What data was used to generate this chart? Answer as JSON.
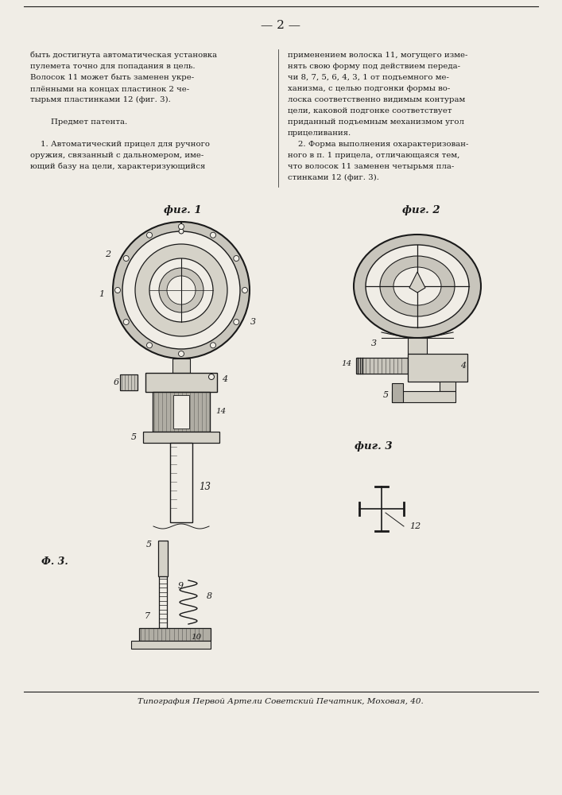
{
  "page_number": "— 2 —",
  "background_color": "#f0ede6",
  "text_color": "#1a1a1a",
  "col1_text_lines": [
    "быть достигнута автоматическая установка",
    "пулемета точно для попадания в цель.",
    "Волосок 11 может быть заменен укре-",
    "плёнными на концах пластинок 2 че-",
    "тырьмя пластинками 12 (фиг. 3).",
    "",
    "        Предмет патента.",
    "",
    "    1. Автоматический прицел для ручного",
    "оружия, связанный с дальномером, име-",
    "ющий базу на цели, характеризующийся"
  ],
  "col2_text_lines": [
    "применением волоска 11, могущего изме-",
    "нять свою форму под действием переда-",
    "чи 8, 7, 5, 6, 4, 3, 1 от подъемного ме-",
    "ханизма, с целью подгонки формы во-",
    "лоска соответственно видимым контурам",
    "цели, каковой подгонке соответствует",
    "приданный подъемным механизмом угол",
    "прицеливания.",
    "    2. Форма выполнения охарактеризован-",
    "ного в п. 1 прицела, отличающаяся тем,",
    "что волосок 11 заменен четырьмя пла-",
    "стинками 12 (фиг. 3)."
  ],
  "fig1_label": "фиг. 1",
  "fig2_label": "фиг. 2",
  "fig3_label": "фиг. 3",
  "fig3_corner_label": "Ф. 3.",
  "footer_text": "Типография Первой Артели Советский Печатник, Моховая, 40."
}
